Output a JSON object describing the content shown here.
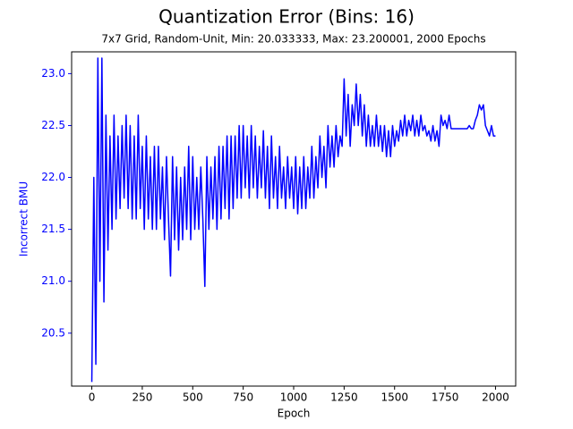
{
  "chart_data": {
    "type": "line",
    "title": "Quantization Error (Bins: 16)",
    "subtitle": "7x7 Grid, Random-Unit, Min: 20.033333, Max: 23.200001, 2000 Epochs",
    "xlabel": "Epoch",
    "ylabel": "Incorrect BMU",
    "yaxis_color": "#0000ff",
    "xlim": [
      -100,
      2100
    ],
    "ylim": [
      19.99,
      23.21
    ],
    "xticks": [
      0,
      250,
      500,
      750,
      1000,
      1250,
      1500,
      1750,
      2000
    ],
    "yticks": [
      20.5,
      {
        "value": 21.0,
        "label": "21.0"
      },
      21.5,
      {
        "value": 22.0,
        "label": "22.0"
      },
      22.5,
      {
        "value": 23.0,
        "label": "23.0"
      }
    ],
    "x": [
      0,
      10,
      20,
      30,
      40,
      50,
      60,
      70,
      80,
      90,
      100,
      110,
      120,
      130,
      140,
      150,
      160,
      170,
      180,
      190,
      200,
      210,
      220,
      230,
      240,
      250,
      260,
      270,
      280,
      290,
      300,
      310,
      320,
      330,
      340,
      350,
      360,
      370,
      380,
      390,
      400,
      410,
      420,
      430,
      440,
      450,
      460,
      470,
      480,
      490,
      500,
      510,
      520,
      530,
      540,
      550,
      560,
      570,
      580,
      590,
      600,
      610,
      620,
      630,
      640,
      650,
      660,
      670,
      680,
      690,
      700,
      710,
      720,
      730,
      740,
      750,
      760,
      770,
      780,
      790,
      800,
      810,
      820,
      830,
      840,
      850,
      860,
      870,
      880,
      890,
      900,
      910,
      920,
      930,
      940,
      950,
      960,
      970,
      980,
      990,
      1000,
      1010,
      1020,
      1030,
      1040,
      1050,
      1060,
      1070,
      1080,
      1090,
      1100,
      1110,
      1120,
      1130,
      1140,
      1150,
      1160,
      1170,
      1180,
      1190,
      1200,
      1210,
      1220,
      1230,
      1240,
      1250,
      1260,
      1270,
      1280,
      1290,
      1300,
      1310,
      1320,
      1330,
      1340,
      1350,
      1360,
      1370,
      1380,
      1390,
      1400,
      1410,
      1420,
      1430,
      1440,
      1450,
      1460,
      1470,
      1480,
      1490,
      1500,
      1510,
      1520,
      1530,
      1540,
      1550,
      1560,
      1570,
      1580,
      1590,
      1600,
      1610,
      1620,
      1630,
      1640,
      1650,
      1660,
      1670,
      1680,
      1690,
      1700,
      1710,
      1720,
      1730,
      1740,
      1750,
      1760,
      1770,
      1780,
      1790,
      1800,
      1810,
      1820,
      1830,
      1840,
      1850,
      1860,
      1870,
      1880,
      1890,
      1900,
      1910,
      1920,
      1930,
      1940,
      1950,
      1960,
      1970,
      1980,
      1990,
      2000
    ],
    "series": [
      {
        "color": "#0000ff",
        "values": [
          20.03,
          22.0,
          20.2,
          23.15,
          21.0,
          23.15,
          20.8,
          22.6,
          21.3,
          22.4,
          21.5,
          22.6,
          21.6,
          22.4,
          21.7,
          22.5,
          21.8,
          22.6,
          21.7,
          22.5,
          21.6,
          22.4,
          21.6,
          22.6,
          21.7,
          22.3,
          21.5,
          22.4,
          21.6,
          22.2,
          21.5,
          22.3,
          21.5,
          22.3,
          21.6,
          22.1,
          21.4,
          22.2,
          21.6,
          21.05,
          22.2,
          21.4,
          22.1,
          21.3,
          22.0,
          21.4,
          22.1,
          21.5,
          22.3,
          21.4,
          22.2,
          21.5,
          22.0,
          21.5,
          22.1,
          21.6,
          20.95,
          22.2,
          21.5,
          22.1,
          21.6,
          22.2,
          21.5,
          22.3,
          21.6,
          22.3,
          21.7,
          22.4,
          21.6,
          22.4,
          21.7,
          22.4,
          21.8,
          22.5,
          21.8,
          22.5,
          21.9,
          22.4,
          21.8,
          22.5,
          21.9,
          22.4,
          21.8,
          22.3,
          21.9,
          22.45,
          21.8,
          22.3,
          21.7,
          22.4,
          21.8,
          22.2,
          21.7,
          22.3,
          21.8,
          22.1,
          21.7,
          22.2,
          21.8,
          22.1,
          21.7,
          22.2,
          21.65,
          22.1,
          21.7,
          22.2,
          21.7,
          22.1,
          21.8,
          22.3,
          21.8,
          22.2,
          21.9,
          22.4,
          22.0,
          22.3,
          21.9,
          22.5,
          22.1,
          22.4,
          22.1,
          22.5,
          22.2,
          22.4,
          22.3,
          22.95,
          22.4,
          22.8,
          22.3,
          22.7,
          22.5,
          22.9,
          22.5,
          22.8,
          22.4,
          22.7,
          22.3,
          22.6,
          22.3,
          22.5,
          22.3,
          22.6,
          22.3,
          22.5,
          22.25,
          22.5,
          22.2,
          22.45,
          22.2,
          22.5,
          22.3,
          22.45,
          22.35,
          22.55,
          22.4,
          22.6,
          22.4,
          22.55,
          22.45,
          22.6,
          22.4,
          22.55,
          22.4,
          22.6,
          22.45,
          22.5,
          22.4,
          22.45,
          22.35,
          22.5,
          22.35,
          22.45,
          22.3,
          22.6,
          22.5,
          22.55,
          22.47,
          22.6,
          22.47,
          22.47,
          22.47,
          22.47,
          22.47,
          22.47,
          22.47,
          22.47,
          22.47,
          22.5,
          22.47,
          22.47,
          22.55,
          22.6,
          22.7,
          22.65,
          22.7,
          22.5,
          22.45,
          22.4,
          22.5,
          22.4,
          22.4
        ]
      }
    ]
  }
}
